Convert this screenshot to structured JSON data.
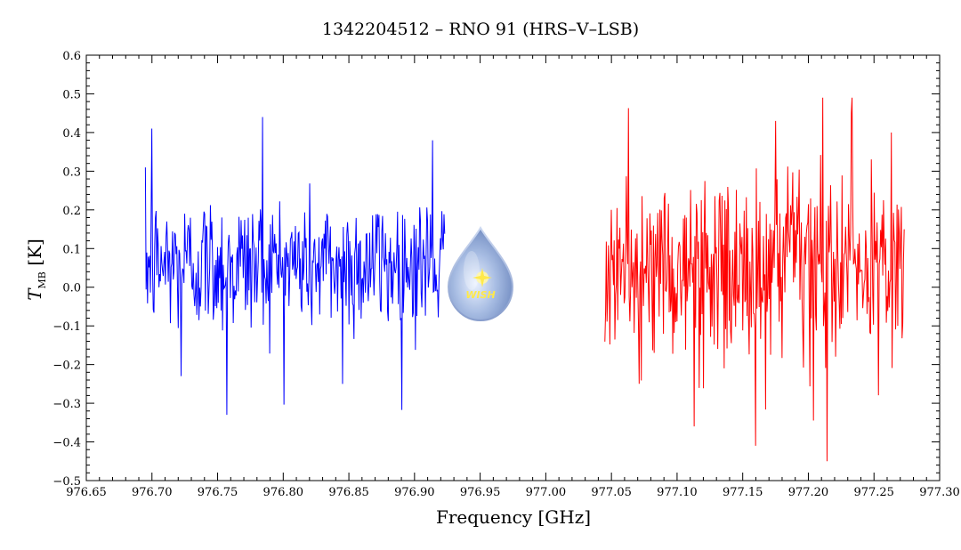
{
  "chart_data": {
    "type": "line",
    "title": "1342204512 – RNO 91 (HRS–V–LSB)",
    "xlabel": "Frequency [GHz]",
    "ylabel_main": "T",
    "ylabel_sub": "MB",
    "ylabel_unit": " [K]",
    "xlim": [
      976.65,
      977.3
    ],
    "ylim": [
      -0.5,
      0.6
    ],
    "x_ticks": [
      976.65,
      976.7,
      976.75,
      976.8,
      976.85,
      976.9,
      976.95,
      977.0,
      977.05,
      977.1,
      977.15,
      977.2,
      977.25,
      977.3
    ],
    "x_tick_labels": [
      "976.65",
      "976.70",
      "976.75",
      "976.80",
      "976.85",
      "976.90",
      "976.95",
      "977.00",
      "977.05",
      "977.10",
      "977.15",
      "977.20",
      "977.25",
      "977.30"
    ],
    "y_ticks": [
      -0.5,
      -0.4,
      -0.3,
      -0.2,
      -0.1,
      0.0,
      0.1,
      0.2,
      0.3,
      0.4,
      0.5,
      0.6
    ],
    "y_tick_labels": [
      "−0.5",
      "−0.4",
      "−0.3",
      "−0.2",
      "−0.1",
      "0.0",
      "0.1",
      "0.2",
      "0.3",
      "0.4",
      "0.5",
      "0.6"
    ],
    "grid": false,
    "logo_text": "WISH",
    "series": [
      {
        "color": "#0000ff",
        "x_range": [
          976.695,
          976.923
        ],
        "n_points": 420,
        "mean": 0.06,
        "std": 0.09,
        "min": -0.33,
        "max": 0.44,
        "spikes": [
          [
            976.7,
            0.41
          ],
          [
            976.7845,
            0.44
          ],
          [
            976.757,
            -0.33
          ],
          [
            976.914,
            0.38
          ],
          [
            976.722,
            -0.23
          ],
          [
            976.845,
            -0.25
          ]
        ]
      },
      {
        "color": "#ff0000",
        "x_range": [
          977.045,
          977.273
        ],
        "n_points": 420,
        "mean": 0.04,
        "std": 0.12,
        "min": -0.45,
        "max": 0.49,
        "spikes": [
          [
            977.211,
            0.49
          ],
          [
            977.214,
            -0.45
          ],
          [
            977.16,
            -0.41
          ],
          [
            977.175,
            0.43
          ],
          [
            977.113,
            -0.36
          ],
          [
            977.233,
            0.45
          ],
          [
            977.263,
            0.4
          ]
        ]
      }
    ]
  }
}
